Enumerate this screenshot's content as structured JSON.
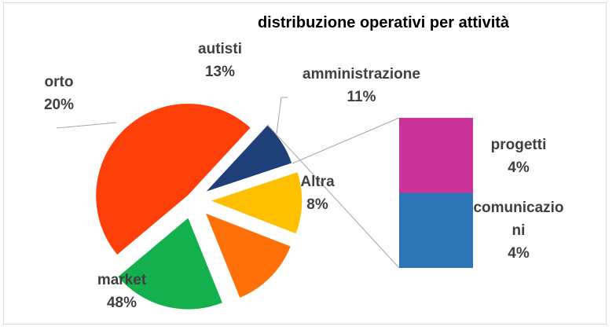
{
  "chart_data": {
    "type": "pie",
    "title": "distribuzione operativi per  attività",
    "slices": [
      {
        "label": "market",
        "pct_label": "48%",
        "value": 48,
        "color": "#FF3F0A"
      },
      {
        "label": "Altra",
        "pct_label": "8%",
        "value": 8,
        "color": "#1F3F78"
      },
      {
        "label": "amministrazione",
        "pct_label": "11%",
        "value": 11,
        "color": "#FFC000"
      },
      {
        "label": "autisti",
        "pct_label": "13%",
        "value": 13,
        "color": "#FF7009"
      },
      {
        "label": "orto",
        "pct_label": "20%",
        "value": 20,
        "color": "#14B04E"
      }
    ],
    "breakdown_of": "Altra",
    "breakdown": [
      {
        "label_lines": [
          "progetti"
        ],
        "pct_label": "4%",
        "value": 4,
        "color": "#CC3399"
      },
      {
        "label_lines": [
          "comunicazio",
          "ni"
        ],
        "pct_label": "4%",
        "value": 4,
        "color": "#2E75B6"
      }
    ]
  }
}
